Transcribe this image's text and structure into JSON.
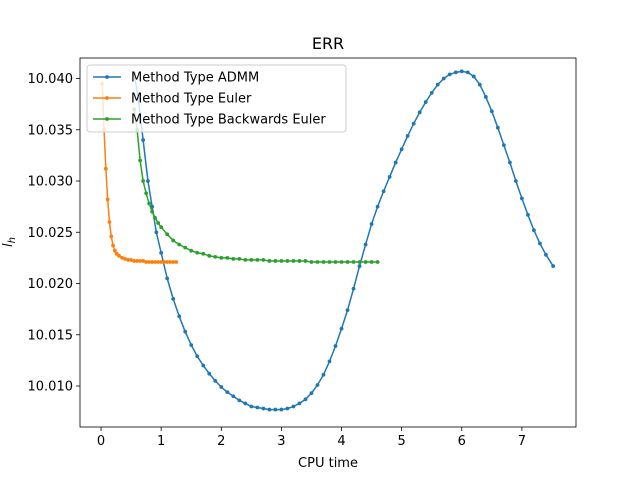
{
  "chart_data": {
    "type": "line",
    "title": "ERR",
    "xlabel": "CPU time",
    "ylabel": "l_h",
    "ylabel_display": "l",
    "ylabel_sub": "h",
    "xlim": [
      -0.35,
      7.9
    ],
    "ylim": [
      10.006,
      10.042
    ],
    "xticks": [
      0,
      1,
      2,
      3,
      4,
      5,
      6,
      7
    ],
    "yticks": [
      10.01,
      10.015,
      10.02,
      10.025,
      10.03,
      10.035,
      10.04
    ],
    "ytick_labels": [
      "10.010",
      "10.015",
      "10.020",
      "10.025",
      "10.030",
      "10.035",
      "10.040"
    ],
    "legend_position": "top-left",
    "series": [
      {
        "name": "Method Type ADMM",
        "color": "#1f77b4",
        "x": [
          0.55,
          0.62,
          0.7,
          0.78,
          0.85,
          0.92,
          1.0,
          1.1,
          1.2,
          1.3,
          1.4,
          1.5,
          1.6,
          1.7,
          1.8,
          1.9,
          2.0,
          2.1,
          2.2,
          2.3,
          2.4,
          2.5,
          2.6,
          2.7,
          2.8,
          2.9,
          3.0,
          3.1,
          3.2,
          3.3,
          3.4,
          3.5,
          3.6,
          3.7,
          3.8,
          3.9,
          4.0,
          4.1,
          4.2,
          4.3,
          4.4,
          4.5,
          4.6,
          4.7,
          4.8,
          4.9,
          5.0,
          5.1,
          5.2,
          5.3,
          5.4,
          5.5,
          5.6,
          5.7,
          5.8,
          5.9,
          6.0,
          6.1,
          6.2,
          6.3,
          6.4,
          6.5,
          6.6,
          6.7,
          6.8,
          6.9,
          7.0,
          7.1,
          7.2,
          7.3,
          7.4,
          7.52
        ],
        "y": [
          10.0405,
          10.038,
          10.034,
          10.03,
          10.0275,
          10.025,
          10.023,
          10.0205,
          10.0185,
          10.0168,
          10.0153,
          10.014,
          10.0129,
          10.012,
          10.0112,
          10.0105,
          10.0099,
          10.0094,
          10.009,
          10.0086,
          10.0083,
          10.008,
          10.0079,
          10.0078,
          10.0077,
          10.0077,
          10.0077,
          10.0078,
          10.008,
          10.0083,
          10.0087,
          10.0093,
          10.0101,
          10.0111,
          10.0124,
          10.0139,
          10.0156,
          10.0174,
          10.0195,
          10.0217,
          10.0238,
          10.0258,
          10.0275,
          10.029,
          10.0304,
          10.0318,
          10.0331,
          10.0344,
          10.0356,
          10.0367,
          10.0377,
          10.0386,
          10.0394,
          10.04,
          10.0404,
          10.0406,
          10.0407,
          10.0406,
          10.0402,
          10.0394,
          10.0382,
          10.0368,
          10.0352,
          10.0335,
          10.0318,
          10.03,
          10.0283,
          10.0267,
          10.0252,
          10.0239,
          10.0228,
          10.0217
        ]
      },
      {
        "name": "Method Type Euler",
        "color": "#ff7f0e",
        "x": [
          0.02,
          0.05,
          0.08,
          0.11,
          0.14,
          0.17,
          0.2,
          0.23,
          0.26,
          0.3,
          0.35,
          0.4,
          0.45,
          0.5,
          0.55,
          0.6,
          0.65,
          0.7,
          0.75,
          0.8,
          0.85,
          0.9,
          0.95,
          1.0,
          1.05,
          1.1,
          1.15,
          1.2,
          1.25
        ],
        "y": [
          10.0395,
          10.035,
          10.0312,
          10.0282,
          10.026,
          10.0246,
          10.0237,
          10.0232,
          10.0229,
          10.0227,
          10.0225,
          10.0224,
          10.0223,
          10.0223,
          10.0222,
          10.0222,
          10.0222,
          10.0222,
          10.0221,
          10.0221,
          10.0221,
          10.0221,
          10.0221,
          10.0221,
          10.0221,
          10.0221,
          10.0221,
          10.0221,
          10.0221
        ]
      },
      {
        "name": "Method Type Backwards Euler",
        "color": "#2ca02c",
        "x": [
          0.55,
          0.6,
          0.65,
          0.7,
          0.75,
          0.8,
          0.85,
          0.9,
          0.95,
          1.0,
          1.1,
          1.2,
          1.3,
          1.4,
          1.5,
          1.6,
          1.7,
          1.8,
          1.9,
          2.0,
          2.1,
          2.2,
          2.3,
          2.4,
          2.5,
          2.6,
          2.7,
          2.8,
          2.9,
          3.0,
          3.1,
          3.2,
          3.3,
          3.4,
          3.5,
          3.6,
          3.7,
          3.8,
          3.9,
          4.0,
          4.1,
          4.2,
          4.3,
          4.4,
          4.5,
          4.6
        ],
        "y": [
          10.037,
          10.035,
          10.032,
          10.03,
          10.0288,
          10.0278,
          10.027,
          10.0264,
          10.0259,
          10.0255,
          10.0248,
          10.0242,
          10.0238,
          10.0235,
          10.0232,
          10.023,
          10.0229,
          10.0227,
          10.0226,
          10.0225,
          10.0225,
          10.0224,
          10.0224,
          10.0223,
          10.0223,
          10.0223,
          10.0223,
          10.0222,
          10.0222,
          10.0222,
          10.0222,
          10.0222,
          10.0222,
          10.0222,
          10.0221,
          10.0221,
          10.0221,
          10.0221,
          10.0221,
          10.0221,
          10.0221,
          10.0221,
          10.0221,
          10.0221,
          10.0221,
          10.0221
        ]
      }
    ]
  }
}
